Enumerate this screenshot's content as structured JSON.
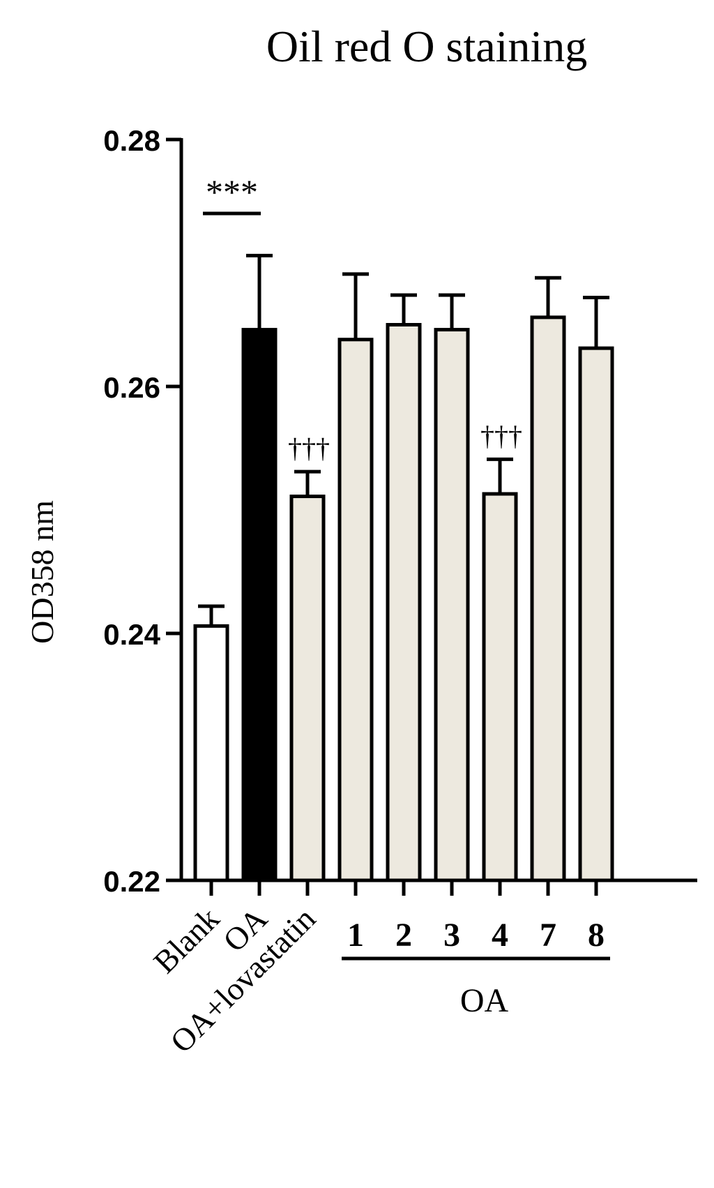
{
  "chart_data": {
    "type": "bar",
    "title": "Oil red O staining",
    "ylabel": "OD358 nm",
    "xlabel": "",
    "ylim": [
      0.22,
      0.28
    ],
    "yticks": [
      "0.22",
      "0.24",
      "0.26",
      "0.28"
    ],
    "categories": [
      "Blank",
      "OA",
      "OA+lovastatin",
      "1",
      "2",
      "3",
      "4",
      "7",
      "8"
    ],
    "values": [
      0.2406,
      0.2646,
      0.2511,
      0.2638,
      0.265,
      0.2646,
      0.2513,
      0.2656,
      0.2631
    ],
    "errors": [
      0.0016,
      0.006,
      0.002,
      0.0053,
      0.0024,
      0.0028,
      0.0028,
      0.0032,
      0.0041
    ],
    "group_label": "OA",
    "group_members": [
      "1",
      "2",
      "3",
      "4",
      "7",
      "8"
    ],
    "annotations": [
      {
        "text": "***",
        "bar": "OA",
        "type": "comparison-with-Blank"
      },
      {
        "text": "†††",
        "bar": "OA+lovastatin"
      },
      {
        "text": "†††",
        "bar": "4"
      }
    ],
    "colors": {
      "Blank": "#ffffff",
      "OA": "#000000",
      "treatment": "#ede9df",
      "stroke": "#000000"
    },
    "grid": false,
    "legend": "none"
  }
}
